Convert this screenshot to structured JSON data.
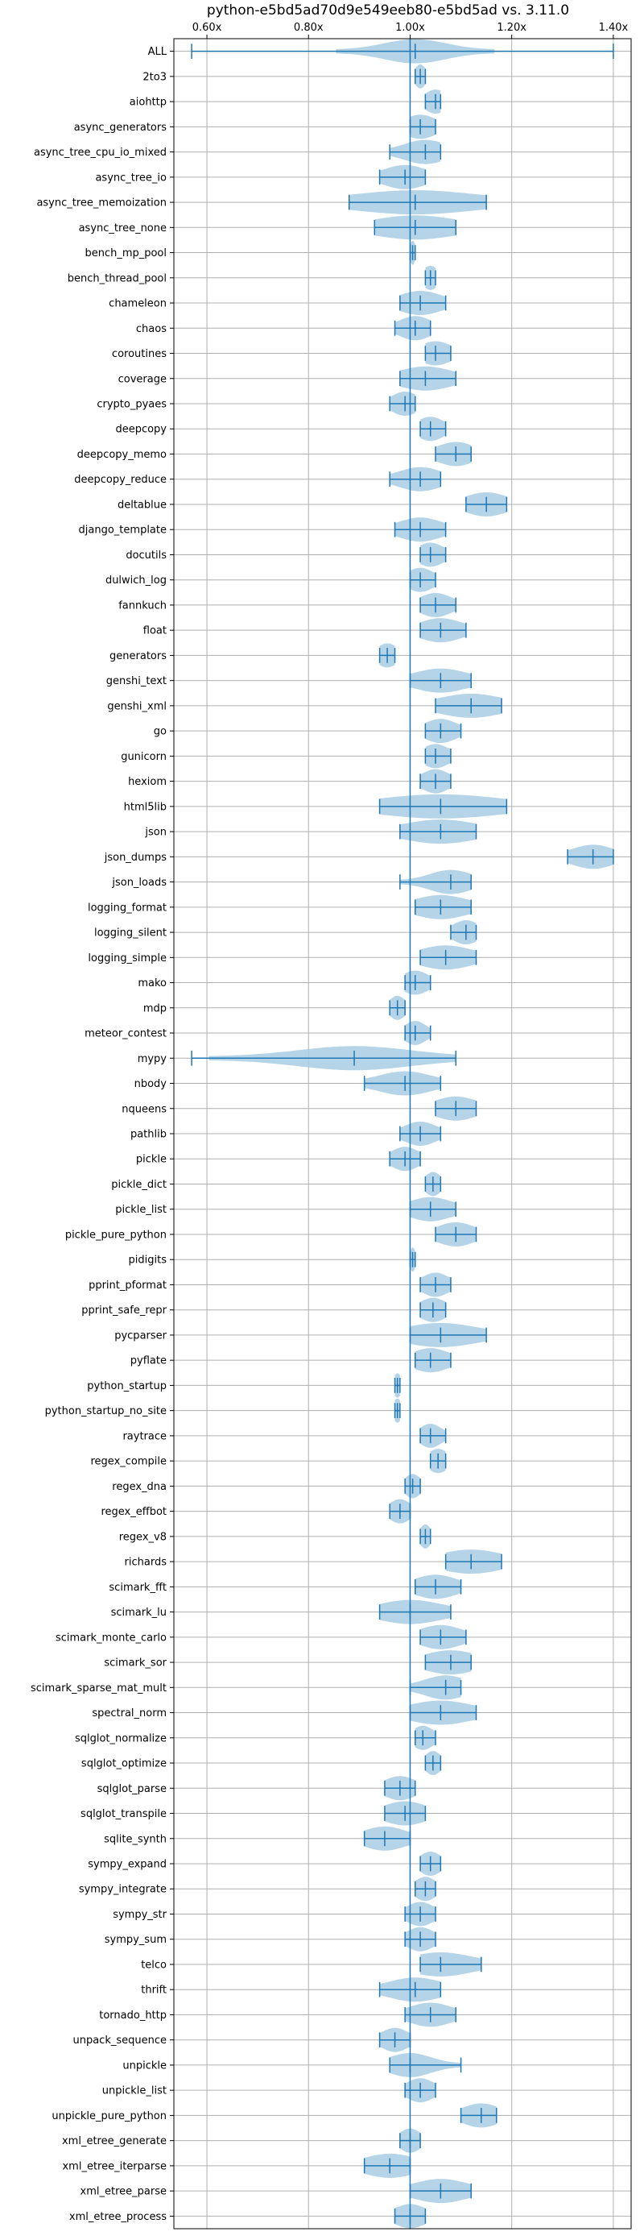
{
  "chart_data": {
    "type": "violin",
    "title": "python-e5bd5ad70d9e549eeb80-e5bd5ad vs. 3.11.0",
    "xlabel": "",
    "ylabel": "",
    "xlim": [
      0.535,
      1.435
    ],
    "x_ticks": [
      0.6,
      0.8,
      1.0,
      1.2,
      1.4
    ],
    "x_tick_labels": [
      "0.60x",
      "0.80x",
      "1.00x",
      "1.20x",
      "1.40x"
    ],
    "x_tick_position": "top",
    "reference_line": 1.0,
    "grid": true,
    "colors": {
      "violin": "#a9cce3",
      "line": "#1f77b4",
      "grid": "#b0b0b0"
    },
    "categories": [
      "ALL",
      "2to3",
      "aiohttp",
      "async_generators",
      "async_tree_cpu_io_mixed",
      "async_tree_io",
      "async_tree_memoization",
      "async_tree_none",
      "bench_mp_pool",
      "bench_thread_pool",
      "chameleon",
      "chaos",
      "coroutines",
      "coverage",
      "crypto_pyaes",
      "deepcopy",
      "deepcopy_memo",
      "deepcopy_reduce",
      "deltablue",
      "django_template",
      "docutils",
      "dulwich_log",
      "fannkuch",
      "float",
      "generators",
      "genshi_text",
      "genshi_xml",
      "go",
      "gunicorn",
      "hexiom",
      "html5lib",
      "json",
      "json_dumps",
      "json_loads",
      "logging_format",
      "logging_silent",
      "logging_simple",
      "mako",
      "mdp",
      "meteor_contest",
      "mypy",
      "nbody",
      "nqueens",
      "pathlib",
      "pickle",
      "pickle_dict",
      "pickle_list",
      "pickle_pure_python",
      "pidigits",
      "pprint_pformat",
      "pprint_safe_repr",
      "pycparser",
      "pyflate",
      "python_startup",
      "python_startup_no_site",
      "raytrace",
      "regex_compile",
      "regex_dna",
      "regex_effbot",
      "regex_v8",
      "richards",
      "scimark_fft",
      "scimark_lu",
      "scimark_monte_carlo",
      "scimark_sor",
      "scimark_sparse_mat_mult",
      "spectral_norm",
      "sqlglot_normalize",
      "sqlglot_optimize",
      "sqlglot_parse",
      "sqlglot_transpile",
      "sqlite_synth",
      "sympy_expand",
      "sympy_integrate",
      "sympy_str",
      "sympy_sum",
      "telco",
      "thrift",
      "tornado_http",
      "unpack_sequence",
      "unpickle",
      "unpickle_list",
      "unpickle_pure_python",
      "xml_etree_generate",
      "xml_etree_iterparse",
      "xml_etree_parse",
      "xml_etree_process"
    ],
    "series": [
      {
        "min": 0.57,
        "max": 1.4,
        "center": 1.01,
        "width": 0.06
      },
      {
        "min": 1.01,
        "max": 1.03,
        "center": 1.02,
        "width": 0.01
      },
      {
        "min": 1.03,
        "max": 1.06,
        "center": 1.05,
        "width": 0.02
      },
      {
        "min": 1.0,
        "max": 1.05,
        "center": 1.02,
        "width": 0.03
      },
      {
        "min": 0.96,
        "max": 1.06,
        "center": 1.03,
        "width": 0.04
      },
      {
        "min": 0.94,
        "max": 1.03,
        "center": 0.99,
        "width": 0.04
      },
      {
        "min": 0.88,
        "max": 1.15,
        "center": 1.01,
        "width": 0.12
      },
      {
        "min": 0.93,
        "max": 1.09,
        "center": 1.01,
        "width": 0.08
      },
      {
        "min": 1.0,
        "max": 1.01,
        "center": 1.005,
        "width": 0.005
      },
      {
        "min": 1.03,
        "max": 1.05,
        "center": 1.04,
        "width": 0.015
      },
      {
        "min": 0.98,
        "max": 1.07,
        "center": 1.02,
        "width": 0.04
      },
      {
        "min": 0.97,
        "max": 1.04,
        "center": 1.01,
        "width": 0.03
      },
      {
        "min": 1.03,
        "max": 1.08,
        "center": 1.05,
        "width": 0.03
      },
      {
        "min": 0.98,
        "max": 1.09,
        "center": 1.03,
        "width": 0.05
      },
      {
        "min": 0.96,
        "max": 1.01,
        "center": 0.99,
        "width": 0.025
      },
      {
        "min": 1.02,
        "max": 1.07,
        "center": 1.04,
        "width": 0.025
      },
      {
        "min": 1.05,
        "max": 1.12,
        "center": 1.09,
        "width": 0.035
      },
      {
        "min": 0.96,
        "max": 1.06,
        "center": 1.02,
        "width": 0.04
      },
      {
        "min": 1.11,
        "max": 1.19,
        "center": 1.15,
        "width": 0.04
      },
      {
        "min": 0.97,
        "max": 1.07,
        "center": 1.02,
        "width": 0.04
      },
      {
        "min": 1.02,
        "max": 1.07,
        "center": 1.04,
        "width": 0.025
      },
      {
        "min": 1.0,
        "max": 1.05,
        "center": 1.02,
        "width": 0.025
      },
      {
        "min": 1.02,
        "max": 1.09,
        "center": 1.05,
        "width": 0.03
      },
      {
        "min": 1.02,
        "max": 1.11,
        "center": 1.06,
        "width": 0.04
      },
      {
        "min": 0.94,
        "max": 0.97,
        "center": 0.955,
        "width": 0.02
      },
      {
        "min": 1.0,
        "max": 1.12,
        "center": 1.06,
        "width": 0.05
      },
      {
        "min": 1.05,
        "max": 1.18,
        "center": 1.12,
        "width": 0.06
      },
      {
        "min": 1.03,
        "max": 1.1,
        "center": 1.06,
        "width": 0.03
      },
      {
        "min": 1.03,
        "max": 1.08,
        "center": 1.05,
        "width": 0.025
      },
      {
        "min": 1.02,
        "max": 1.08,
        "center": 1.05,
        "width": 0.025
      },
      {
        "min": 0.94,
        "max": 1.19,
        "center": 1.06,
        "width": 0.12
      },
      {
        "min": 0.98,
        "max": 1.13,
        "center": 1.06,
        "width": 0.07
      },
      {
        "min": 1.31,
        "max": 1.4,
        "center": 1.36,
        "width": 0.04
      },
      {
        "min": 0.98,
        "max": 1.12,
        "center": 1.08,
        "width": 0.04
      },
      {
        "min": 1.01,
        "max": 1.12,
        "center": 1.06,
        "width": 0.05
      },
      {
        "min": 1.08,
        "max": 1.13,
        "center": 1.11,
        "width": 0.025
      },
      {
        "min": 1.02,
        "max": 1.13,
        "center": 1.07,
        "width": 0.05
      },
      {
        "min": 0.99,
        "max": 1.04,
        "center": 1.01,
        "width": 0.025
      },
      {
        "min": 0.96,
        "max": 0.99,
        "center": 0.975,
        "width": 0.015
      },
      {
        "min": 0.99,
        "max": 1.04,
        "center": 1.01,
        "width": 0.02
      },
      {
        "min": 0.57,
        "max": 1.09,
        "center": 0.89,
        "width": 0.11
      },
      {
        "min": 0.91,
        "max": 1.06,
        "center": 0.99,
        "width": 0.05
      },
      {
        "min": 1.05,
        "max": 1.13,
        "center": 1.09,
        "width": 0.04
      },
      {
        "min": 0.98,
        "max": 1.06,
        "center": 1.02,
        "width": 0.03
      },
      {
        "min": 0.96,
        "max": 1.02,
        "center": 0.99,
        "width": 0.025
      },
      {
        "min": 1.03,
        "max": 1.06,
        "center": 1.045,
        "width": 0.015
      },
      {
        "min": 1.0,
        "max": 1.09,
        "center": 1.04,
        "width": 0.04
      },
      {
        "min": 1.05,
        "max": 1.13,
        "center": 1.09,
        "width": 0.035
      },
      {
        "min": 1.0,
        "max": 1.01,
        "center": 1.005,
        "width": 0.005
      },
      {
        "min": 1.02,
        "max": 1.08,
        "center": 1.05,
        "width": 0.025
      },
      {
        "min": 1.02,
        "max": 1.07,
        "center": 1.045,
        "width": 0.025
      },
      {
        "min": 1.0,
        "max": 1.15,
        "center": 1.06,
        "width": 0.07
      },
      {
        "min": 1.01,
        "max": 1.08,
        "center": 1.04,
        "width": 0.035
      },
      {
        "min": 0.97,
        "max": 0.98,
        "center": 0.975,
        "width": 0.008
      },
      {
        "min": 0.97,
        "max": 0.98,
        "center": 0.975,
        "width": 0.008
      },
      {
        "min": 1.02,
        "max": 1.07,
        "center": 1.04,
        "width": 0.02
      },
      {
        "min": 1.04,
        "max": 1.07,
        "center": 1.055,
        "width": 0.02
      },
      {
        "min": 0.99,
        "max": 1.02,
        "center": 1.005,
        "width": 0.015
      },
      {
        "min": 0.96,
        "max": 1.0,
        "center": 0.98,
        "width": 0.02
      },
      {
        "min": 1.02,
        "max": 1.04,
        "center": 1.03,
        "width": 0.01
      },
      {
        "min": 1.07,
        "max": 1.18,
        "center": 1.12,
        "width": 0.06
      },
      {
        "min": 1.01,
        "max": 1.1,
        "center": 1.05,
        "width": 0.04
      },
      {
        "min": 0.94,
        "max": 1.08,
        "center": 1.0,
        "width": 0.06
      },
      {
        "min": 1.02,
        "max": 1.11,
        "center": 1.06,
        "width": 0.04
      },
      {
        "min": 1.03,
        "max": 1.12,
        "center": 1.08,
        "width": 0.05
      },
      {
        "min": 1.0,
        "max": 1.1,
        "center": 1.07,
        "width": 0.04
      },
      {
        "min": 1.0,
        "max": 1.13,
        "center": 1.06,
        "width": 0.06
      },
      {
        "min": 1.01,
        "max": 1.05,
        "center": 1.025,
        "width": 0.02
      },
      {
        "min": 1.03,
        "max": 1.06,
        "center": 1.045,
        "width": 0.015
      },
      {
        "min": 0.95,
        "max": 1.01,
        "center": 0.98,
        "width": 0.03
      },
      {
        "min": 0.95,
        "max": 1.03,
        "center": 0.99,
        "width": 0.04
      },
      {
        "min": 0.91,
        "max": 1.0,
        "center": 0.95,
        "width": 0.04
      },
      {
        "min": 1.02,
        "max": 1.06,
        "center": 1.04,
        "width": 0.02
      },
      {
        "min": 1.01,
        "max": 1.05,
        "center": 1.03,
        "width": 0.02
      },
      {
        "min": 0.99,
        "max": 1.05,
        "center": 1.02,
        "width": 0.025
      },
      {
        "min": 0.99,
        "max": 1.05,
        "center": 1.02,
        "width": 0.025
      },
      {
        "min": 1.02,
        "max": 1.14,
        "center": 1.06,
        "width": 0.06
      },
      {
        "min": 0.94,
        "max": 1.06,
        "center": 1.01,
        "width": 0.05
      },
      {
        "min": 0.99,
        "max": 1.09,
        "center": 1.04,
        "width": 0.04
      },
      {
        "min": 0.94,
        "max": 1.0,
        "center": 0.97,
        "width": 0.025
      },
      {
        "min": 0.96,
        "max": 1.1,
        "center": 1.0,
        "width": 0.04
      },
      {
        "min": 0.99,
        "max": 1.05,
        "center": 1.02,
        "width": 0.025
      },
      {
        "min": 1.1,
        "max": 1.17,
        "center": 1.14,
        "width": 0.035
      },
      {
        "min": 0.98,
        "max": 1.02,
        "center": 1.0,
        "width": 0.02
      },
      {
        "min": 0.91,
        "max": 1.0,
        "center": 0.96,
        "width": 0.05
      },
      {
        "min": 1.0,
        "max": 1.12,
        "center": 1.06,
        "width": 0.05
      },
      {
        "min": 0.97,
        "max": 1.03,
        "center": 1.0,
        "width": 0.03
      }
    ]
  }
}
